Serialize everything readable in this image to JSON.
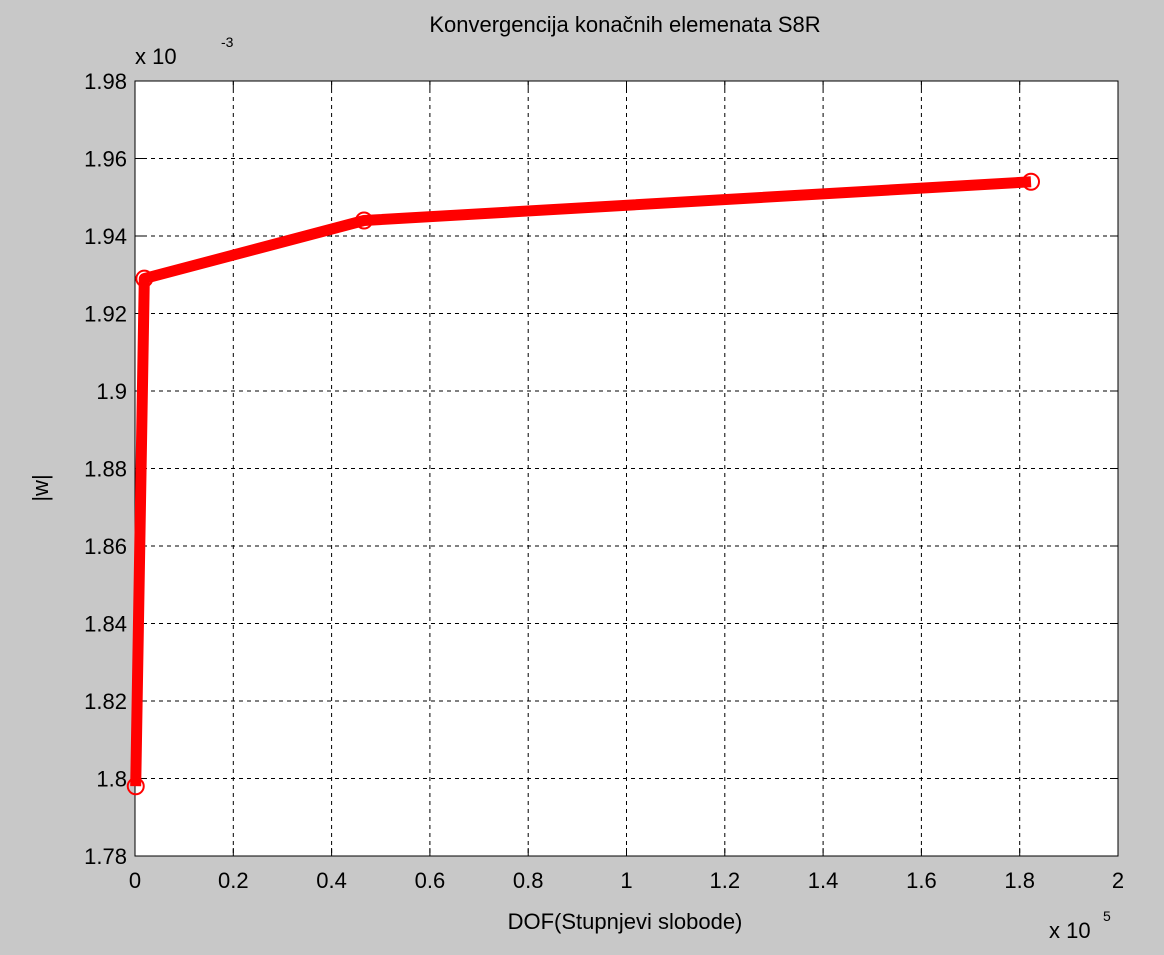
{
  "chart_data": {
    "type": "line",
    "title": "Konvergencija konačnih elemenata S8R",
    "xlabel": "DOF(Stupnjevi slobode)",
    "ylabel": "|w|",
    "x_multiplier_label": "x 10",
    "x_multiplier_exponent": "5",
    "y_multiplier_label": "x 10",
    "y_multiplier_exponent": "-3",
    "xlim": [
      0,
      2
    ],
    "ylim": [
      1.78,
      1.98
    ],
    "xticks": [
      0,
      0.2,
      0.4,
      0.6,
      0.8,
      1,
      1.2,
      1.4,
      1.6,
      1.8,
      2
    ],
    "xtick_labels": [
      "0",
      "0.2",
      "0.4",
      "0.6",
      "0.8",
      "1",
      "1.2",
      "1.4",
      "1.6",
      "1.8",
      "2"
    ],
    "yticks": [
      1.78,
      1.8,
      1.82,
      1.84,
      1.86,
      1.88,
      1.9,
      1.92,
      1.94,
      1.96,
      1.98
    ],
    "ytick_labels": [
      "1.78",
      "1.8",
      "1.82",
      "1.84",
      "1.86",
      "1.88",
      "1.9",
      "1.92",
      "1.94",
      "1.96",
      "1.98"
    ],
    "grid": true,
    "line_color": "#ff0000",
    "background_color": "#c8c8c8",
    "axes_color": "#ffffff",
    "series": [
      {
        "x": [
          0.0015,
          0.019,
          0.466,
          1.823
        ],
        "y": [
          1.798,
          1.929,
          1.944,
          1.954
        ]
      }
    ]
  }
}
